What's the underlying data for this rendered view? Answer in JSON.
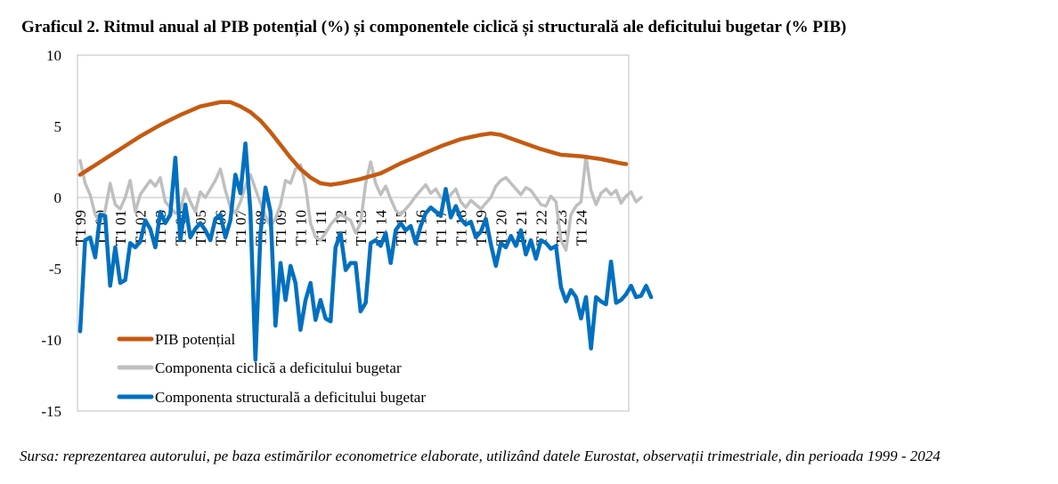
{
  "header": {
    "title": "Graficul 2. Ritmul anual al PIB potențial (%) și componentele ciclică și structurală ale deficitului bugetar (% PIB)"
  },
  "footer": {
    "source": "Sursa: reprezentarea autorului, pe baza estimărilor econometrice elaborate, utilizând datele Eurostat, observații trimestriale, din perioada 1999 - 2024"
  },
  "colors": {
    "pib": "#C55A11",
    "cyclical": "#BFBFBF",
    "structural": "#0070C0"
  },
  "chart_data": {
    "type": "line",
    "title": "Graficul 2. Ritmul anual al PIB potențial (%) și componentele ciclică și structurală ale deficitului bugetar (% PIB)",
    "ylim": [
      -15,
      10
    ],
    "yticks": [
      10,
      5,
      0,
      -5,
      -10,
      -15
    ],
    "x_tick_labels": [
      "T1 99",
      "T1 00",
      "T1 01",
      "T1 02",
      "T1 03",
      "T1 04",
      "T1 05",
      "T1 06",
      "T1 07",
      "T1 08",
      "T1 09",
      "T1 10",
      "T1 11",
      "T1 12",
      "T1 13",
      "T1 14",
      "T1 15",
      "T1 16",
      "T1 17",
      "T1 18",
      "T1 19",
      "T1 20",
      "T1 21",
      "T1 22",
      "T1 23",
      "T1 24"
    ],
    "grid": false,
    "legend_position": "bottom-left",
    "series": [
      {
        "name": "PIB potențial",
        "key": "pib",
        "anchors": [
          [
            0,
            1.6
          ],
          [
            4,
            2.5
          ],
          [
            8,
            3.4
          ],
          [
            12,
            4.3
          ],
          [
            16,
            5.1
          ],
          [
            20,
            5.8
          ],
          [
            24,
            6.4
          ],
          [
            28,
            6.7
          ],
          [
            30,
            6.7
          ],
          [
            32,
            6.4
          ],
          [
            34,
            6.0
          ],
          [
            36,
            5.4
          ],
          [
            38,
            4.6
          ],
          [
            40,
            3.7
          ],
          [
            42,
            2.8
          ],
          [
            44,
            2.0
          ],
          [
            46,
            1.4
          ],
          [
            48,
            1.0
          ],
          [
            50,
            0.9
          ],
          [
            52,
            1.0
          ],
          [
            56,
            1.3
          ],
          [
            60,
            1.7
          ],
          [
            64,
            2.4
          ],
          [
            68,
            3.0
          ],
          [
            72,
            3.6
          ],
          [
            76,
            4.1
          ],
          [
            80,
            4.4
          ],
          [
            82,
            4.5
          ],
          [
            84,
            4.4
          ],
          [
            88,
            3.9
          ],
          [
            92,
            3.4
          ],
          [
            96,
            3.0
          ],
          [
            100,
            2.9
          ],
          [
            104,
            2.7
          ],
          [
            108,
            2.4
          ],
          [
            110,
            2.3
          ]
        ]
      },
      {
        "name": "Componenta ciclică a deficitului bugetar",
        "key": "cyclical",
        "values": [
          2.6,
          1.0,
          0.2,
          -1.2,
          -1.8,
          -0.9,
          1.0,
          -0.5,
          -0.8,
          0.0,
          1.2,
          -1.0,
          0.2,
          0.7,
          1.2,
          0.8,
          1.4,
          -0.3,
          -0.7,
          -1.1,
          -0.9,
          0.6,
          -0.3,
          -1.0,
          0.4,
          0.0,
          0.6,
          1.2,
          2.0,
          0.5,
          -0.7,
          -1.1,
          -0.3,
          0.8,
          1.6,
          0.6,
          -0.4,
          -1.3,
          -2.0,
          -1.5,
          -0.5,
          1.2,
          1.0,
          2.0,
          2.3,
          0.8,
          -1.8,
          -2.8,
          -3.0,
          -2.5,
          -1.9,
          -1.5,
          -1.2,
          -1.4,
          -1.6,
          -2.5,
          -1.8,
          1.0,
          2.5,
          1.0,
          0.2,
          0.8,
          -0.1,
          -0.9,
          -1.2,
          -0.8,
          -0.4,
          0.1,
          0.5,
          0.9,
          0.3,
          0.6,
          0.0,
          -0.2,
          0.2,
          0.6,
          -0.3,
          -0.7,
          -0.2,
          -0.5,
          -0.8,
          -0.4,
          0.0,
          0.8,
          1.2,
          1.4,
          1.0,
          0.6,
          0.2,
          0.7,
          0.5,
          0.0,
          -0.5,
          -0.6,
          0.1,
          -0.3,
          -3.0,
          -3.7,
          -1.2,
          -0.6,
          -0.3,
          2.9,
          0.5,
          -0.5,
          0.3,
          0.6,
          0.2,
          0.5,
          -0.4,
          0.1,
          0.4,
          -0.3,
          0.0
        ]
      },
      {
        "name": "Componenta structurală a deficitului bugetar",
        "key": "structural",
        "values": [
          -9.4,
          -3.0,
          -2.8,
          -4.2,
          -1.2,
          -1.3,
          -6.2,
          -3.5,
          -6.0,
          -5.8,
          -3.2,
          -3.5,
          -3.1,
          -1.6,
          -2.2,
          -3.5,
          -1.0,
          -1.8,
          -1.2,
          2.8,
          -3.0,
          -0.5,
          -2.8,
          -2.2,
          -1.8,
          -2.3,
          -3.0,
          -1.5,
          -1.2,
          -2.8,
          -1.6,
          1.6,
          0.3,
          3.8,
          -1.0,
          -11.4,
          -2.5,
          0.7,
          -1.0,
          -9.0,
          -4.6,
          -7.2,
          -4.8,
          -6.0,
          -9.3,
          -7.2,
          -6.0,
          -8.6,
          -7.2,
          -8.5,
          -8.7,
          -3.5,
          -2.5,
          -5.1,
          -4.6,
          -4.6,
          -8.0,
          -7.4,
          -3.2,
          -3.0,
          -3.4,
          -2.5,
          -4.6,
          -2.3,
          -1.8,
          -2.3,
          -2.0,
          -3.2,
          -2.0,
          -1.1,
          -0.7,
          -1.0,
          -1.3,
          0.6,
          -1.4,
          -0.6,
          -1.5,
          -1.9,
          -1.7,
          -2.8,
          -2.4,
          -1.5,
          -3.3,
          -4.8,
          -3.2,
          -3.5,
          -2.7,
          -3.4,
          -2.3,
          -4.0,
          -3.0,
          -4.3,
          -3.0,
          -3.2,
          -3.6,
          -3.4,
          -6.3,
          -7.3,
          -6.5,
          -7.0,
          -8.5,
          -7.0,
          -10.6,
          -7.0,
          -7.3,
          -7.5,
          -4.5,
          -7.4,
          -7.2,
          -6.8,
          -6.2,
          -7.0,
          -6.9,
          -6.2,
          -7.0
        ]
      }
    ]
  }
}
